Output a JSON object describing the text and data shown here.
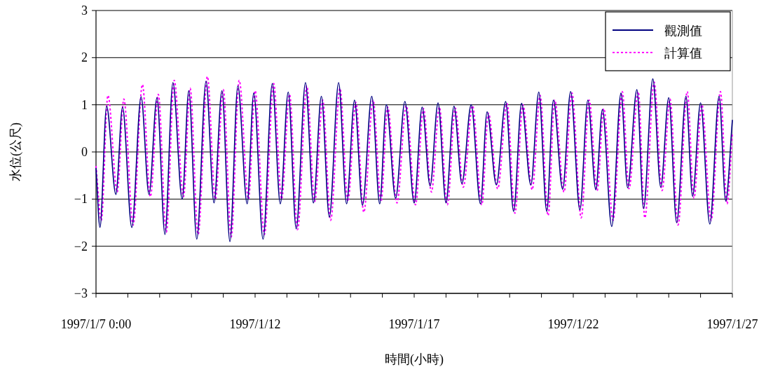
{
  "chart_data": {
    "type": "line",
    "xlabel": "時間(小時)",
    "ylabel": "水位(公尺)",
    "xlim": [
      "1997-01-07T00:00",
      "1997-01-27T00:00"
    ],
    "xticks": [
      {
        "value": "1997-01-07T00:00",
        "label": "1997/1/7 0:00"
      },
      {
        "value": "1997-01-08",
        "label": null
      },
      {
        "value": "1997-01-09",
        "label": null
      },
      {
        "value": "1997-01-10",
        "label": null
      },
      {
        "value": "1997-01-11",
        "label": null
      },
      {
        "value": "1997-01-12",
        "label": "1997/1/12"
      },
      {
        "value": "1997-01-13",
        "label": null
      },
      {
        "value": "1997-01-14",
        "label": null
      },
      {
        "value": "1997-01-15",
        "label": null
      },
      {
        "value": "1997-01-16",
        "label": null
      },
      {
        "value": "1997-01-17",
        "label": "1997/1/17"
      },
      {
        "value": "1997-01-18",
        "label": null
      },
      {
        "value": "1997-01-19",
        "label": null
      },
      {
        "value": "1997-01-20",
        "label": null
      },
      {
        "value": "1997-01-21",
        "label": null
      },
      {
        "value": "1997-01-22",
        "label": "1997/1/22"
      },
      {
        "value": "1997-01-23",
        "label": null
      },
      {
        "value": "1997-01-24",
        "label": null
      },
      {
        "value": "1997-01-25",
        "label": null
      },
      {
        "value": "1997-01-26",
        "label": null
      },
      {
        "value": "1997-01-27",
        "label": "1997/1/27"
      }
    ],
    "ylim": [
      -3,
      3
    ],
    "yticks": [
      {
        "value": -3,
        "label": "−3"
      },
      {
        "value": -2,
        "label": "−2"
      },
      {
        "value": -1,
        "label": "−1"
      },
      0,
      1,
      2,
      3
    ],
    "grid": "y",
    "legend": "top right",
    "series": [
      {
        "name": "觀測值",
        "color": "#000080",
        "line_style": "solid",
        "x": [
          "1997-01-07T00:00",
          "1997-01-07T03:00",
          "1997-01-07T08:00",
          "1997-01-07T15:00",
          "1997-01-07T20:00",
          "1997-01-08T03:00",
          "1997-01-08T10:00",
          "1997-01-08T16:00",
          "1997-01-08T22:00",
          "1997-01-09T04:00",
          "1997-01-09T10:00",
          "1997-01-09T17:00",
          "1997-01-09T22:00",
          "1997-01-10T04:00",
          "1997-01-10T11:00",
          "1997-01-10T17:00",
          "1997-01-10T23:00",
          "1997-01-11T05:00",
          "1997-01-11T11:00",
          "1997-01-11T18:00",
          "1997-01-11T23:00",
          "1997-01-12T06:00",
          "1997-01-12T13:00",
          "1997-01-12T19:00",
          "1997-01-13T01:00",
          "1997-01-13T07:00",
          "1997-01-13T14:00",
          "1997-01-13T20:00",
          "1997-01-14T02:00",
          "1997-01-14T08:00",
          "1997-01-14T15:00",
          "1997-01-14T21:00",
          "1997-01-15T03:00",
          "1997-01-15T09:00",
          "1997-01-15T16:00",
          "1997-01-15T22:00",
          "1997-01-16T03:00",
          "1997-01-16T10:00",
          "1997-01-16T17:00",
          "1997-01-17T00:00",
          "1997-01-17T06:00",
          "1997-01-17T12:00",
          "1997-01-17T18:00",
          "1997-01-18T00:00",
          "1997-01-18T06:00",
          "1997-01-18T12:00",
          "1997-01-18T19:00",
          "1997-01-19T02:00",
          "1997-01-19T07:00",
          "1997-01-19T14:00",
          "1997-01-19T21:00",
          "1997-01-20T03:00",
          "1997-01-20T09:00",
          "1997-01-20T16:00",
          "1997-01-20T22:00",
          "1997-01-21T04:00",
          "1997-01-21T09:00",
          "1997-01-21T16:00",
          "1997-01-21T22:00",
          "1997-01-22T05:00",
          "1997-01-22T11:00",
          "1997-01-22T17:00",
          "1997-01-22T22:00",
          "1997-01-23T05:00",
          "1997-01-23T12:00",
          "1997-01-23T17:00",
          "1997-01-24T00:00",
          "1997-01-24T05:00",
          "1997-01-24T12:00",
          "1997-01-24T18:00",
          "1997-01-25T00:00",
          "1997-01-25T06:00",
          "1997-01-25T13:00",
          "1997-01-25T18:00",
          "1997-01-26T00:00",
          "1997-01-26T07:00",
          "1997-01-26T14:00",
          "1997-01-26T19:00",
          "1997-01-27T00:00"
        ],
        "values": [
          -0.35,
          -1.6,
          0.97,
          -0.9,
          0.95,
          -1.6,
          1.17,
          -0.9,
          1.15,
          -1.75,
          1.47,
          -1.0,
          1.3,
          -1.85,
          1.5,
          -1.08,
          1.3,
          -1.9,
          1.4,
          -1.1,
          1.25,
          -1.85,
          1.45,
          -1.1,
          1.27,
          -1.63,
          1.47,
          -1.08,
          1.18,
          -1.38,
          1.47,
          -1.1,
          1.1,
          -1.13,
          1.18,
          -1.1,
          1.0,
          -0.98,
          1.07,
          -1.08,
          0.95,
          -0.72,
          1.04,
          -1.08,
          0.97,
          -0.67,
          1.0,
          -1.1,
          0.85,
          -0.7,
          1.07,
          -1.26,
          1.03,
          -0.7,
          1.27,
          -1.26,
          1.1,
          -0.79,
          1.28,
          -1.23,
          1.1,
          -0.8,
          0.9,
          -1.58,
          1.25,
          -0.76,
          1.32,
          -1.2,
          1.55,
          -0.75,
          1.15,
          -1.5,
          1.18,
          -0.94,
          1.04,
          -1.53,
          1.18,
          -1.04,
          0.67
        ]
      },
      {
        "name": "計算值",
        "color": "#ff00ff",
        "line_style": "dotted",
        "x": [
          "1997-01-07T00:00",
          "1997-01-07T04:00",
          "1997-01-07T09:00",
          "1997-01-07T16:00",
          "1997-01-07T21:00",
          "1997-01-08T04:00",
          "1997-01-08T11:00",
          "1997-01-08T17:00",
          "1997-01-08T23:00",
          "1997-01-09T05:00",
          "1997-01-09T11:00",
          "1997-01-09T18:00",
          "1997-01-09T23:00",
          "1997-01-10T05:00",
          "1997-01-10T12:00",
          "1997-01-10T18:00",
          "1997-01-11T00:00",
          "1997-01-11T06:00",
          "1997-01-11T12:00",
          "1997-01-11T19:00",
          "1997-01-12T00:00",
          "1997-01-12T07:00",
          "1997-01-12T14:00",
          "1997-01-12T20:00",
          "1997-01-13T02:00",
          "1997-01-13T08:00",
          "1997-01-13T15:00",
          "1997-01-13T21:00",
          "1997-01-14T03:00",
          "1997-01-14T09:00",
          "1997-01-14T16:00",
          "1997-01-14T22:00",
          "1997-01-15T04:00",
          "1997-01-15T10:00",
          "1997-01-15T17:00",
          "1997-01-15T23:00",
          "1997-01-16T04:00",
          "1997-01-16T11:00",
          "1997-01-16T18:00",
          "1997-01-17T01:00",
          "1997-01-17T07:00",
          "1997-01-17T13:00",
          "1997-01-17T19:00",
          "1997-01-18T01:00",
          "1997-01-18T07:00",
          "1997-01-18T13:00",
          "1997-01-18T20:00",
          "1997-01-19T03:00",
          "1997-01-19T08:00",
          "1997-01-19T15:00",
          "1997-01-19T22:00",
          "1997-01-20T04:00",
          "1997-01-20T10:00",
          "1997-01-20T17:00",
          "1997-01-20T23:00",
          "1997-01-21T05:00",
          "1997-01-21T10:00",
          "1997-01-21T17:00",
          "1997-01-21T23:00",
          "1997-01-22T06:00",
          "1997-01-22T12:00",
          "1997-01-22T18:00",
          "1997-01-22T23:00",
          "1997-01-23T06:00",
          "1997-01-23T13:00",
          "1997-01-23T18:00",
          "1997-01-24T01:00",
          "1997-01-24T06:00",
          "1997-01-24T13:00",
          "1997-01-24T19:00",
          "1997-01-25T01:00",
          "1997-01-25T07:00",
          "1997-01-25T14:00",
          "1997-01-25T19:00",
          "1997-01-26T01:00",
          "1997-01-26T08:00",
          "1997-01-26T15:00",
          "1997-01-26T20:00",
          "1997-01-27T00:00"
        ],
        "values": [
          -0.3,
          -1.45,
          1.2,
          -0.85,
          1.12,
          -1.55,
          1.43,
          -0.95,
          1.22,
          -1.7,
          1.52,
          -0.95,
          1.35,
          -1.75,
          1.6,
          -1.0,
          1.32,
          -1.8,
          1.52,
          -1.0,
          1.3,
          -1.75,
          1.45,
          -1.0,
          1.22,
          -1.65,
          1.4,
          -1.05,
          1.1,
          -1.45,
          1.35,
          -1.05,
          1.05,
          -1.28,
          1.1,
          -1.05,
          0.95,
          -1.08,
          0.98,
          -1.12,
          0.92,
          -0.85,
          0.95,
          -1.12,
          0.93,
          -0.75,
          0.98,
          -1.12,
          0.82,
          -0.78,
          1.03,
          -1.3,
          1.0,
          -0.8,
          1.2,
          -1.35,
          1.1,
          -0.85,
          1.25,
          -1.4,
          1.1,
          -0.82,
          0.92,
          -1.45,
          1.28,
          -0.78,
          1.28,
          -1.4,
          1.48,
          -0.82,
          1.12,
          -1.55,
          1.28,
          -0.98,
          1.0,
          -1.45,
          1.28,
          -1.1,
          0.4
        ]
      }
    ]
  }
}
